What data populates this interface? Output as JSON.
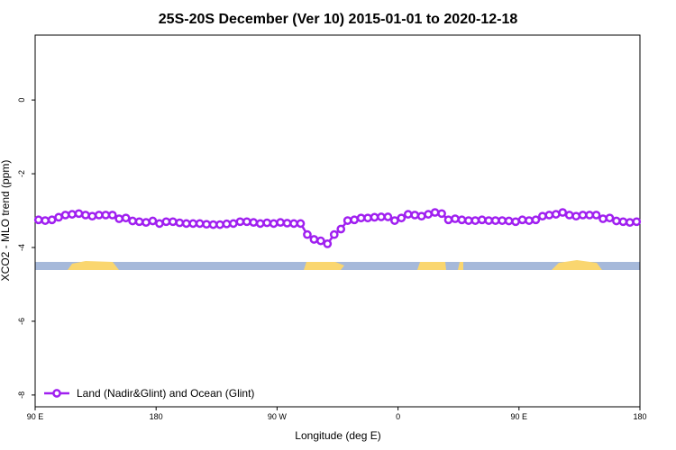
{
  "chart_data": {
    "type": "line",
    "title": "25S-20S December (Ver 10)   2015-01-01 to 2020-12-18",
    "x_label": "Longitude (deg E)",
    "y_label": "XCO2 - MLO trend (ppm)",
    "xlim": [
      90,
      540
    ],
    "xticks": [
      {
        "value": 90,
        "label": "90 E"
      },
      180,
      {
        "value": 270,
        "label": "90 W"
      },
      {
        "value": 360,
        "label": "0"
      },
      {
        "value": 450,
        "label": "90 E"
      },
      {
        "value": 540,
        "label": "180"
      }
    ],
    "ylim": [
      -8.32,
      1.76
    ],
    "yticks": [
      0,
      -2,
      -4,
      -6,
      -8
    ],
    "legend": "bottom-left",
    "x": [
      92.5,
      97.5,
      102.5,
      107.5,
      112.5,
      117.5,
      122.5,
      127.5,
      132.5,
      137.5,
      142.5,
      147.5,
      152.5,
      157.5,
      162.5,
      167.5,
      172.5,
      177.5,
      182.5,
      187.5,
      192.5,
      197.5,
      202.5,
      207.5,
      212.5,
      217.5,
      222.5,
      227.5,
      232.5,
      237.5,
      242.5,
      247.5,
      252.5,
      257.5,
      262.5,
      267.5,
      272.5,
      277.5,
      282.5,
      287.5,
      292.5,
      297.5,
      302.5,
      307.5,
      312.5,
      317.5,
      322.5,
      327.5,
      332.5,
      337.5,
      342.5,
      347.5,
      352.5,
      357.5,
      362.5,
      367.5,
      372.5,
      377.5,
      382.5,
      387.5,
      392.5,
      397.5,
      402.5,
      407.5,
      412.5,
      417.5,
      422.5,
      427.5,
      432.5,
      437.5,
      442.5,
      447.5,
      452.5,
      457.5,
      462.5,
      467.5,
      472.5,
      477.5,
      482.5,
      487.5,
      492.5,
      497.5,
      502.5,
      507.5,
      512.5,
      517.5,
      522.5,
      527.5,
      532.5,
      537.5
    ],
    "series": [
      {
        "name": "Land (Nadir&Glint) and Ocean (Glint)",
        "color": "#a020f0",
        "values": [
          -3.25,
          -3.27,
          -3.25,
          -3.18,
          -3.12,
          -3.1,
          -3.08,
          -3.12,
          -3.15,
          -3.12,
          -3.12,
          -3.12,
          -3.22,
          -3.2,
          -3.28,
          -3.3,
          -3.32,
          -3.28,
          -3.35,
          -3.3,
          -3.3,
          -3.33,
          -3.35,
          -3.35,
          -3.35,
          -3.37,
          -3.38,
          -3.38,
          -3.36,
          -3.35,
          -3.3,
          -3.3,
          -3.32,
          -3.35,
          -3.33,
          -3.35,
          -3.32,
          -3.34,
          -3.35,
          -3.35,
          -3.65,
          -3.78,
          -3.82,
          -3.9,
          -3.65,
          -3.5,
          -3.27,
          -3.25,
          -3.2,
          -3.2,
          -3.18,
          -3.17,
          -3.17,
          -3.27,
          -3.2,
          -3.1,
          -3.12,
          -3.15,
          -3.1,
          -3.05,
          -3.08,
          -3.25,
          -3.22,
          -3.25,
          -3.27,
          -3.27,
          -3.25,
          -3.27,
          -3.27,
          -3.27,
          -3.28,
          -3.3,
          -3.25,
          -3.27,
          -3.25,
          -3.15,
          -3.12,
          -3.1,
          -3.05,
          -3.12,
          -3.15,
          -3.12,
          -3.12,
          -3.12,
          -3.22,
          -3.2,
          -3.28,
          -3.3,
          -3.32,
          -3.3
        ]
      }
    ]
  }
}
